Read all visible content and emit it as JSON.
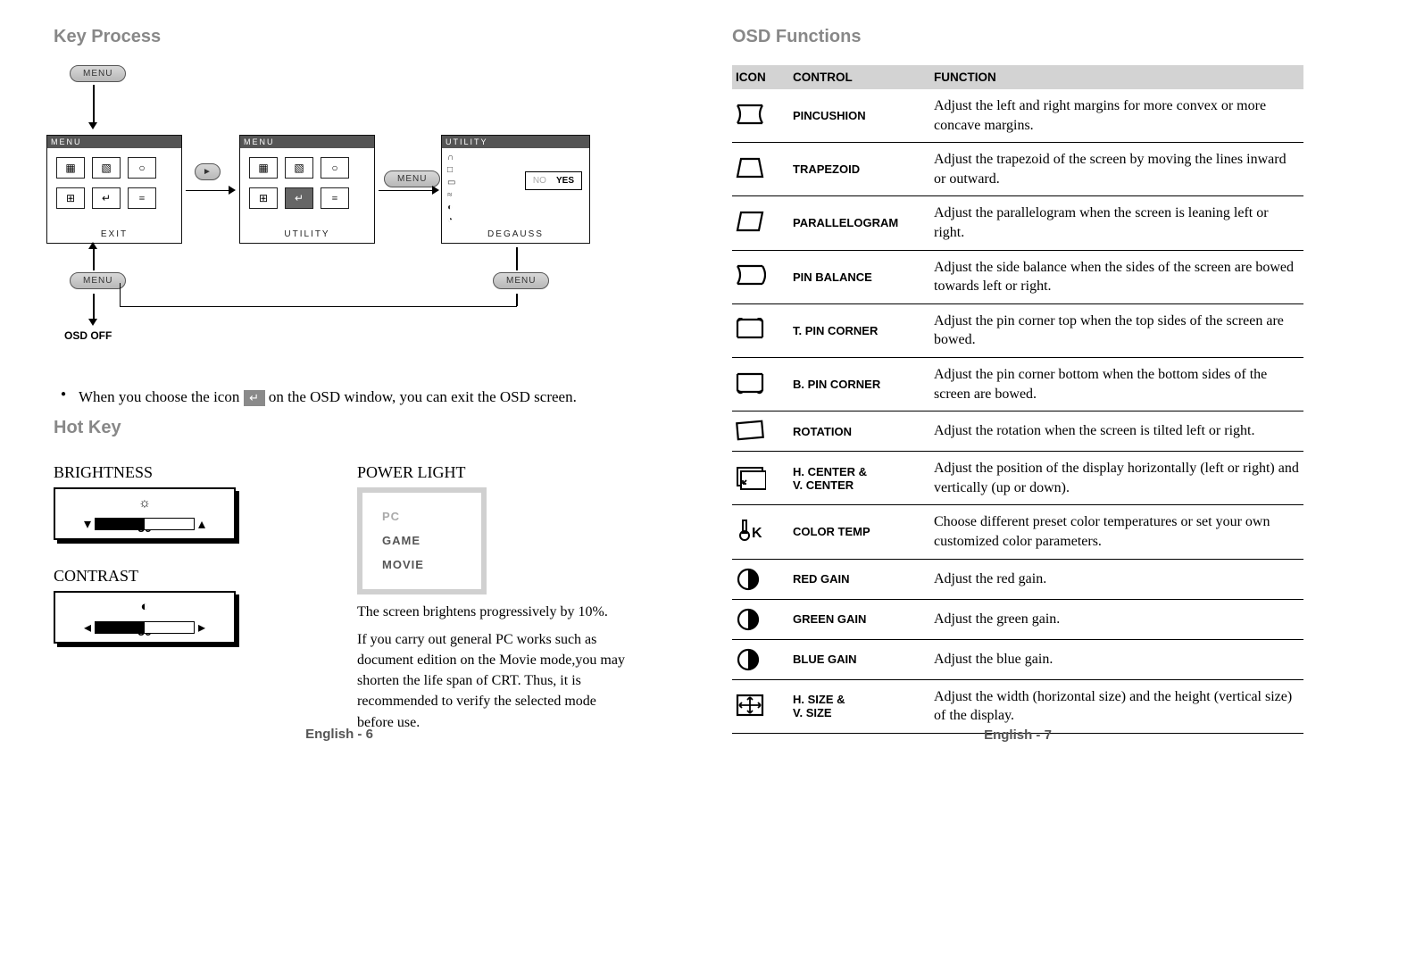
{
  "left": {
    "title": "Key Process",
    "osd_off": "OSD OFF",
    "menu_btn": "MENU",
    "arrow_btn": "►",
    "panels": {
      "p1": {
        "title": "MENU",
        "footer": "EXIT",
        "cells": [
          "▦",
          "▧",
          "○",
          "⊞",
          "↵",
          "≡"
        ]
      },
      "p2": {
        "title": "MENU",
        "footer": "UTILITY",
        "cells": [
          "▦",
          "▧",
          "○",
          "⊞",
          "↵",
          "≡"
        ],
        "sel_index": 4
      },
      "p3": {
        "title": "UTILITY",
        "footer": "DEGAUSS",
        "side": [
          "∩",
          "□",
          "▭",
          "≈",
          "◐",
          "◔"
        ],
        "no": "NO",
        "yes": "YES"
      }
    },
    "note_pre": "When you choose the icon",
    "note_post": " on the OSD window, you can exit the OSD screen.",
    "hotkey_title": "Hot Key",
    "brightness_label": "BRIGHTNESS",
    "contrast_label": "CONTRAST",
    "power_label": "POWER LIGHT",
    "slider_value": "50",
    "power_items": [
      "PC",
      "GAME",
      "MOVIE"
    ],
    "power_desc1": "The screen brightens progressively by 10%.",
    "power_desc2": "If you carry out general PC works such as document edition on the Movie mode,you may shorten the life span of CRT. Thus, it is recommended to verify the selected mode before use.",
    "page_num": "English - 6"
  },
  "right": {
    "title": "OSD Functions",
    "th_icon": "ICON",
    "th_ctrl": "CONTROL",
    "th_func": "FUNCTION",
    "rows": [
      {
        "ctrl": "PINCUSHION",
        "func": "Adjust the left and right margins for more convex or more concave margins.",
        "icon": "pincushion"
      },
      {
        "ctrl": "TRAPEZOID",
        "func": "Adjust the trapezoid of the screen by moving the lines inward or outward.",
        "icon": "trapezoid"
      },
      {
        "ctrl": "PARALLELOGRAM",
        "func": "Adjust the parallelogram when the screen is leaning left or right.",
        "icon": "parallelogram"
      },
      {
        "ctrl": "PIN BALANCE",
        "func": "Adjust the side balance when the sides of the screen are bowed towards left or right.",
        "icon": "pinbalance"
      },
      {
        "ctrl": "T. PIN CORNER",
        "func": "Adjust the pin corner top when the top sides of the screen are bowed.",
        "icon": "tpin"
      },
      {
        "ctrl": "B. PIN CORNER",
        "func": "Adjust the pin corner bottom when the bottom sides of the screen are bowed.",
        "icon": "bpin"
      },
      {
        "ctrl": "ROTATION",
        "func": "Adjust the rotation when the screen is tilted left or right.",
        "icon": "rotation"
      },
      {
        "ctrl": "H. CENTER &\n V. CENTER",
        "func": "Adjust the position of the display horizontally (left or right) and vertically (up or down).",
        "icon": "center"
      },
      {
        "ctrl": "COLOR TEMP",
        "func": "Choose different preset color temperatures or set your own customized color parameters.",
        "icon": "colortemp"
      },
      {
        "ctrl": "RED GAIN",
        "func": "Adjust the red gain.",
        "icon": "gain"
      },
      {
        "ctrl": "GREEN GAIN",
        "func": "Adjust the green gain.",
        "icon": "gain"
      },
      {
        "ctrl": "BLUE GAIN",
        "func": "Adjust the blue gain.",
        "icon": "gain"
      },
      {
        "ctrl": "H. SIZE &\n V. SIZE",
        "func": "Adjust the width (horizontal size) and the height (vertical size) of the display.",
        "icon": "size"
      }
    ],
    "page_num": "English - 7"
  },
  "colors": {
    "gray": "#888",
    "txt": "#000"
  }
}
